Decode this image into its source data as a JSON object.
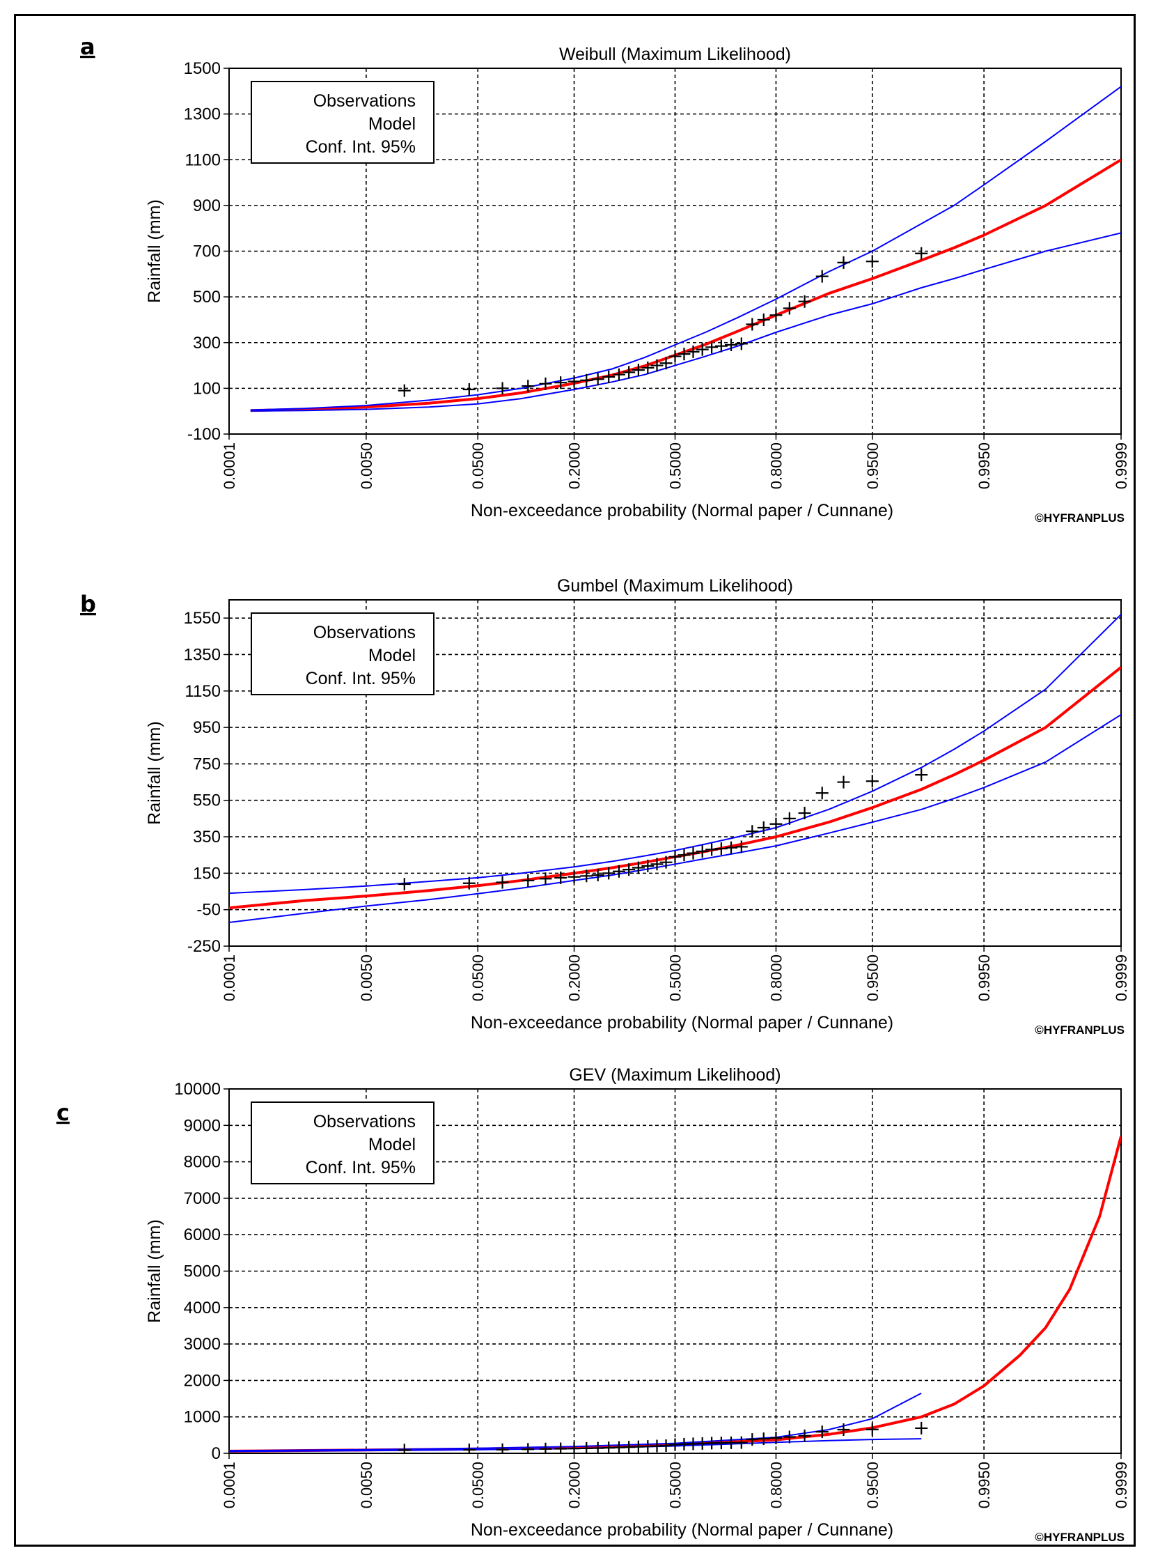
{
  "chart_data": [
    {
      "panel": "a",
      "type": "line",
      "title": "Weibull (Maximum Likelihood)",
      "xlabel": "Non-exceedance probability (Normal paper / Cunnane)",
      "ylabel": "Rainfall (mm)",
      "xscale": "normal-probability",
      "xticks": [
        "0.0001",
        "0.0050",
        "0.0500",
        "0.2000",
        "0.5000",
        "0.8000",
        "0.9500",
        "0.9950",
        "0.9999"
      ],
      "yticks": [
        -100,
        100,
        300,
        500,
        700,
        900,
        1100,
        1300,
        1500
      ],
      "ylim": [
        -100,
        1500
      ],
      "legend": [
        "Observations",
        "Model",
        "Conf. Int. 95%"
      ],
      "legend_position": "top-left",
      "grid": true,
      "watermark": "©HYFRANPLUS",
      "series": [
        {
          "name": "Model",
          "color": "#ff0000",
          "x": [
            0.0002,
            0.001,
            0.005,
            0.02,
            0.05,
            0.1,
            0.2,
            0.3,
            0.4,
            0.5,
            0.6,
            0.7,
            0.8,
            0.9,
            0.95,
            0.98,
            0.99,
            0.995,
            0.999,
            0.9999
          ],
          "y": [
            3,
            8,
            18,
            35,
            55,
            80,
            122,
            158,
            198,
            245,
            292,
            350,
            420,
            515,
            580,
            660,
            715,
            770,
            900,
            1100
          ]
        },
        {
          "name": "Conf. Int. 95% upper",
          "color": "#0000ff",
          "x": [
            0.0002,
            0.001,
            0.005,
            0.02,
            0.05,
            0.1,
            0.2,
            0.3,
            0.4,
            0.5,
            0.6,
            0.7,
            0.8,
            0.9,
            0.95,
            0.98,
            0.99,
            0.995,
            0.999,
            0.9999
          ],
          "y": [
            5,
            12,
            25,
            48,
            72,
            100,
            145,
            185,
            235,
            290,
            345,
            410,
            490,
            610,
            700,
            820,
            900,
            990,
            1180,
            1420
          ]
        },
        {
          "name": "Conf. Int. 95% lower",
          "color": "#0000ff",
          "x": [
            0.0002,
            0.001,
            0.005,
            0.02,
            0.05,
            0.1,
            0.2,
            0.3,
            0.4,
            0.5,
            0.6,
            0.7,
            0.8,
            0.9,
            0.95,
            0.98,
            0.99,
            0.995,
            0.999,
            0.9999
          ],
          "y": [
            1,
            3,
            8,
            18,
            32,
            55,
            95,
            128,
            160,
            200,
            240,
            285,
            345,
            420,
            470,
            540,
            580,
            620,
            700,
            780
          ]
        },
        {
          "name": "Observations",
          "marker": "+",
          "color": "#000000",
          "x": [
            0.012,
            0.043,
            0.075,
            0.11,
            0.14,
            0.17,
            0.2,
            0.23,
            0.26,
            0.29,
            0.32,
            0.35,
            0.38,
            0.41,
            0.44,
            0.47,
            0.5,
            0.53,
            0.56,
            0.59,
            0.62,
            0.65,
            0.68,
            0.71,
            0.74,
            0.77,
            0.8,
            0.83,
            0.86,
            0.89,
            0.92,
            0.95,
            0.98
          ],
          "y": [
            90,
            95,
            100,
            110,
            120,
            125,
            130,
            135,
            140,
            150,
            160,
            170,
            180,
            190,
            200,
            210,
            240,
            250,
            260,
            270,
            280,
            285,
            290,
            295,
            380,
            400,
            420,
            450,
            480,
            590,
            650,
            655,
            690
          ]
        }
      ]
    },
    {
      "panel": "b",
      "type": "line",
      "title": "Gumbel (Maximum Likelihood)",
      "xlabel": "Non-exceedance probability (Normal paper / Cunnane)",
      "ylabel": "Rainfall (mm)",
      "xscale": "normal-probability",
      "xticks": [
        "0.0001",
        "0.0050",
        "0.0500",
        "0.2000",
        "0.5000",
        "0.8000",
        "0.9500",
        "0.9950",
        "0.9999"
      ],
      "yticks": [
        -250,
        -50,
        150,
        350,
        550,
        750,
        950,
        1150,
        1350,
        1550
      ],
      "ylim": [
        -250,
        1650
      ],
      "legend": [
        "Observations",
        "Model",
        "Conf. Int. 95%"
      ],
      "legend_position": "top-left",
      "grid": true,
      "watermark": "©HYFRANPLUS",
      "series": [
        {
          "name": "Model",
          "color": "#ff0000",
          "x": [
            0.0001,
            0.001,
            0.005,
            0.02,
            0.05,
            0.1,
            0.2,
            0.3,
            0.4,
            0.5,
            0.6,
            0.7,
            0.8,
            0.9,
            0.95,
            0.98,
            0.99,
            0.995,
            0.999,
            0.9999
          ],
          "y": [
            -40,
            0,
            25,
            55,
            82,
            110,
            150,
            180,
            210,
            240,
            270,
            305,
            350,
            430,
            510,
            610,
            690,
            770,
            950,
            1280
          ]
        },
        {
          "name": "Conf. Int. 95% upper",
          "color": "#0000ff",
          "x": [
            0.0001,
            0.001,
            0.005,
            0.02,
            0.05,
            0.1,
            0.2,
            0.3,
            0.4,
            0.5,
            0.6,
            0.7,
            0.8,
            0.9,
            0.95,
            0.98,
            0.99,
            0.995,
            0.999,
            0.9999
          ],
          "y": [
            40,
            60,
            80,
            105,
            125,
            150,
            185,
            215,
            245,
            275,
            310,
            350,
            400,
            500,
            600,
            730,
            830,
            930,
            1160,
            1570
          ]
        },
        {
          "name": "Conf. Int. 95% lower",
          "color": "#0000ff",
          "x": [
            0.0001,
            0.001,
            0.005,
            0.02,
            0.05,
            0.1,
            0.2,
            0.3,
            0.4,
            0.5,
            0.6,
            0.7,
            0.8,
            0.9,
            0.95,
            0.98,
            0.99,
            0.995,
            0.999,
            0.9999
          ],
          "y": [
            -120,
            -70,
            -30,
            5,
            38,
            68,
            110,
            140,
            170,
            200,
            230,
            262,
            300,
            370,
            430,
            500,
            560,
            620,
            760,
            1020
          ]
        },
        {
          "name": "Observations",
          "marker": "+",
          "color": "#000000",
          "x": [
            0.012,
            0.043,
            0.075,
            0.11,
            0.14,
            0.17,
            0.2,
            0.23,
            0.26,
            0.29,
            0.32,
            0.35,
            0.38,
            0.41,
            0.44,
            0.47,
            0.5,
            0.53,
            0.56,
            0.59,
            0.62,
            0.65,
            0.68,
            0.71,
            0.74,
            0.77,
            0.8,
            0.83,
            0.86,
            0.89,
            0.92,
            0.95,
            0.98
          ],
          "y": [
            90,
            95,
            100,
            110,
            120,
            125,
            130,
            135,
            140,
            150,
            160,
            170,
            180,
            190,
            200,
            210,
            240,
            250,
            260,
            270,
            280,
            285,
            290,
            295,
            380,
            400,
            420,
            450,
            480,
            590,
            650,
            655,
            690
          ]
        }
      ]
    },
    {
      "panel": "c",
      "type": "line",
      "title": "GEV (Maximum Likelihood)",
      "xlabel": "Non-exceedance probability (Normal paper / Cunnane)",
      "ylabel": "Rainfall (mm)",
      "xscale": "normal-probability",
      "xticks": [
        "0.0001",
        "0.0050",
        "0.0500",
        "0.2000",
        "0.5000",
        "0.8000",
        "0.9500",
        "0.9950",
        "0.9999"
      ],
      "yticks": [
        0,
        1000,
        2000,
        3000,
        4000,
        5000,
        6000,
        7000,
        8000,
        9000,
        10000
      ],
      "ylim": [
        0,
        10000
      ],
      "legend": [
        "Observations",
        "Model",
        "Conf. Int. 95%"
      ],
      "legend_position": "top-left",
      "grid": true,
      "watermark": "©HYFRANPLUS",
      "series": [
        {
          "name": "Model",
          "color": "#ff0000",
          "x": [
            0.0001,
            0.005,
            0.05,
            0.2,
            0.5,
            0.8,
            0.9,
            0.95,
            0.98,
            0.99,
            0.995,
            0.998,
            0.999,
            0.9995,
            0.9998,
            0.9999
          ],
          "y": [
            60,
            90,
            120,
            160,
            240,
            370,
            520,
            700,
            1000,
            1350,
            1850,
            2700,
            3450,
            4500,
            6500,
            8700
          ]
        },
        {
          "name": "Conf. Int. 95% upper",
          "color": "#0000ff",
          "x": [
            0.0001,
            0.005,
            0.05,
            0.2,
            0.5,
            0.8,
            0.9,
            0.95,
            0.98
          ],
          "y": [
            70,
            100,
            140,
            185,
            275,
            440,
            650,
            950,
            1650
          ]
        },
        {
          "name": "Conf. Int. 95% lower",
          "color": "#0000ff",
          "x": [
            0.0001,
            0.005,
            0.05,
            0.2,
            0.5,
            0.8,
            0.9,
            0.95,
            0.98
          ],
          "y": [
            50,
            75,
            100,
            130,
            200,
            300,
            350,
            380,
            400
          ]
        },
        {
          "name": "Observations",
          "marker": "+",
          "color": "#000000",
          "x": [
            0.012,
            0.043,
            0.075,
            0.11,
            0.14,
            0.17,
            0.2,
            0.23,
            0.26,
            0.29,
            0.32,
            0.35,
            0.38,
            0.41,
            0.44,
            0.47,
            0.5,
            0.53,
            0.56,
            0.59,
            0.62,
            0.65,
            0.68,
            0.71,
            0.74,
            0.77,
            0.8,
            0.83,
            0.86,
            0.89,
            0.92,
            0.95,
            0.98
          ],
          "y": [
            90,
            95,
            100,
            110,
            120,
            125,
            130,
            135,
            140,
            150,
            160,
            170,
            180,
            190,
            200,
            210,
            240,
            250,
            260,
            270,
            280,
            285,
            290,
            295,
            380,
            400,
            420,
            450,
            480,
            590,
            650,
            655,
            690
          ]
        }
      ]
    }
  ]
}
